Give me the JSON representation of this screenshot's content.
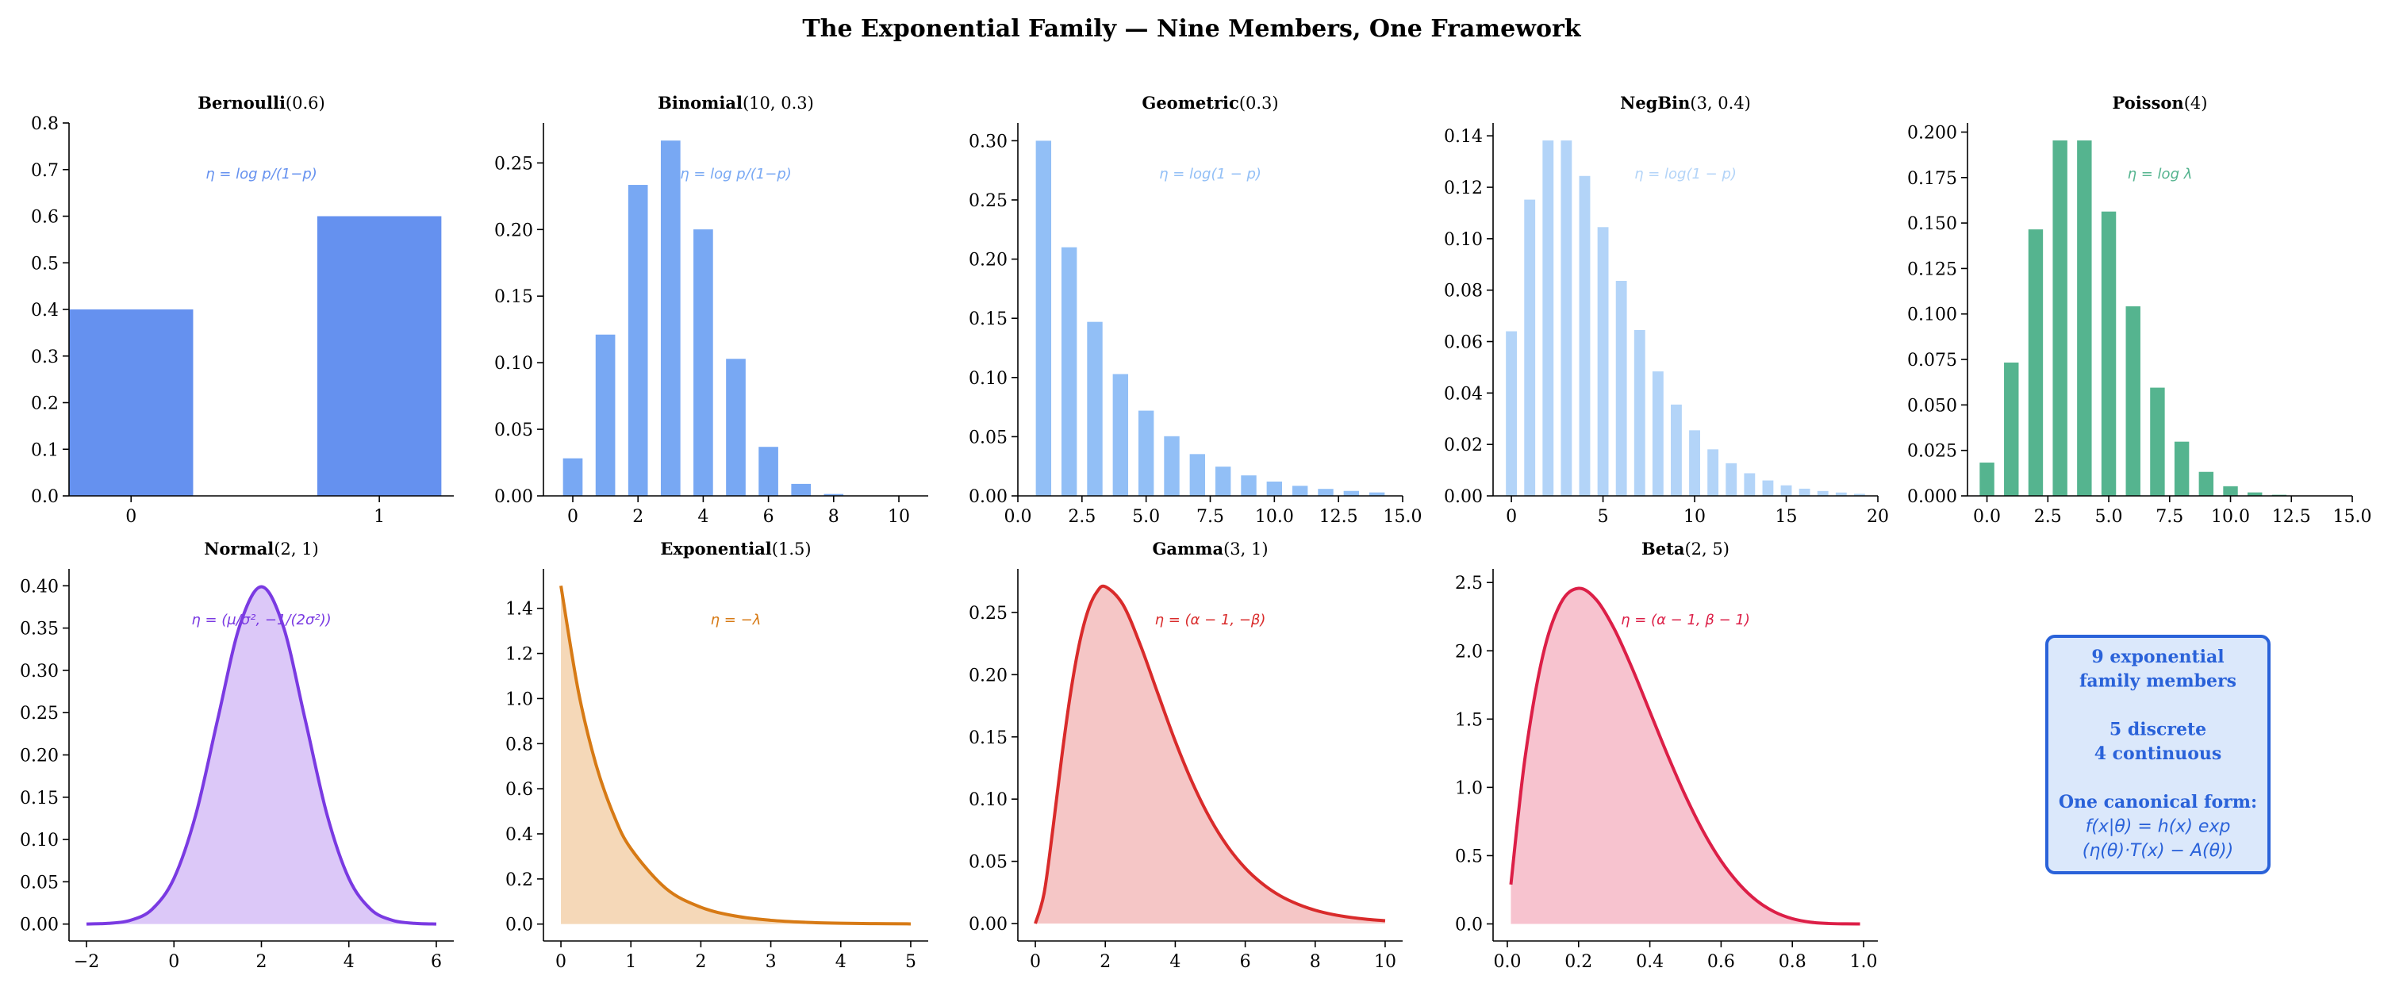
{
  "figure_title": "The Exponential Family — Nine Members, One Framework",
  "chart_data": [
    {
      "type": "bar",
      "title_name": "Bernoulli",
      "title_params": "(0.6)",
      "annotation": "η = log p/(1−p)",
      "color": "#6591ef",
      "x": [
        0,
        1
      ],
      "values": [
        0.4,
        0.6
      ],
      "xlim": [
        -0.25,
        1.3
      ],
      "ylim": [
        0,
        0.8
      ],
      "xticks": [
        0,
        1
      ],
      "xtick_labels": [
        "0",
        "1"
      ],
      "yticks": [
        0,
        0.1,
        0.2,
        0.3,
        0.4,
        0.5,
        0.6,
        0.7,
        0.8
      ],
      "ytick_labels": [
        "0.0",
        "0.1",
        "0.2",
        "0.3",
        "0.4",
        "0.5",
        "0.6",
        "0.7",
        "0.8"
      ]
    },
    {
      "type": "bar",
      "title_name": "Binomial",
      "title_params": "(10, 0.3)",
      "annotation": "η = log p/(1−p)",
      "color": "#78a8f3",
      "x": [
        0,
        1,
        2,
        3,
        4,
        5,
        6,
        7,
        8,
        9,
        10
      ],
      "values": [
        0.0282,
        0.1211,
        0.2335,
        0.2668,
        0.2001,
        0.1029,
        0.0368,
        0.009,
        0.0014,
        0.0001,
        0.0
      ],
      "xlim": [
        -0.9,
        10.9
      ],
      "ylim": [
        0,
        0.28
      ],
      "xticks": [
        0,
        2,
        4,
        6,
        8,
        10
      ],
      "xtick_labels": [
        "0",
        "2",
        "4",
        "6",
        "8",
        "10"
      ],
      "yticks": [
        0,
        0.05,
        0.1,
        0.15,
        0.2,
        0.25
      ],
      "ytick_labels": [
        "0.00",
        "0.05",
        "0.10",
        "0.15",
        "0.20",
        "0.25"
      ]
    },
    {
      "type": "bar",
      "title_name": "Geometric",
      "title_params": "(0.3)",
      "annotation": "η = log(1 − p)",
      "color": "#92bff6",
      "x": [
        1,
        2,
        3,
        4,
        5,
        6,
        7,
        8,
        9,
        10,
        11,
        12,
        13,
        14
      ],
      "values": [
        0.3,
        0.21,
        0.147,
        0.1029,
        0.072,
        0.0504,
        0.0353,
        0.0247,
        0.0173,
        0.0121,
        0.0085,
        0.0059,
        0.0042,
        0.0029
      ],
      "xlim": [
        0,
        15
      ],
      "ylim": [
        0,
        0.315
      ],
      "xticks": [
        0,
        2.5,
        5,
        7.5,
        10,
        12.5,
        15
      ],
      "xtick_labels": [
        "0.0",
        "2.5",
        "5.0",
        "7.5",
        "10.0",
        "12.5",
        "15.0"
      ],
      "yticks": [
        0,
        0.05,
        0.1,
        0.15,
        0.2,
        0.25,
        0.3
      ],
      "ytick_labels": [
        "0.00",
        "0.05",
        "0.10",
        "0.15",
        "0.20",
        "0.25",
        "0.30"
      ]
    },
    {
      "type": "bar",
      "title_name": "NegBin",
      "title_params": "(3, 0.4)",
      "annotation": "η = log(1 − p)",
      "color": "#b3d4f8",
      "x": [
        0,
        1,
        2,
        3,
        4,
        5,
        6,
        7,
        8,
        9,
        10,
        11,
        12,
        13,
        14,
        15,
        16,
        17,
        18,
        19
      ],
      "values": [
        0.064,
        0.1152,
        0.1382,
        0.1382,
        0.1244,
        0.1045,
        0.0836,
        0.0645,
        0.0484,
        0.0355,
        0.0255,
        0.0181,
        0.0127,
        0.0088,
        0.006,
        0.0041,
        0.0028,
        0.0019,
        0.0013,
        0.0008
      ],
      "xlim": [
        -1,
        20
      ],
      "ylim": [
        0,
        0.145
      ],
      "xticks": [
        0,
        5,
        10,
        15,
        20
      ],
      "xtick_labels": [
        "0",
        "5",
        "10",
        "15",
        "20"
      ],
      "yticks": [
        0,
        0.02,
        0.04,
        0.06,
        0.08,
        0.1,
        0.12,
        0.14
      ],
      "ytick_labels": [
        "0.00",
        "0.02",
        "0.04",
        "0.06",
        "0.08",
        "0.10",
        "0.12",
        "0.14"
      ]
    },
    {
      "type": "bar",
      "title_name": "Poisson",
      "title_params": "(4)",
      "annotation": "η = log λ",
      "color": "#55b48f",
      "x": [
        0,
        1,
        2,
        3,
        4,
        5,
        6,
        7,
        8,
        9,
        10,
        11,
        12,
        13,
        14
      ],
      "values": [
        0.0183,
        0.0733,
        0.1465,
        0.1954,
        0.1954,
        0.1563,
        0.1042,
        0.0595,
        0.0298,
        0.0132,
        0.0053,
        0.0019,
        0.0006,
        0.0002,
        0.0001
      ],
      "xlim": [
        -0.8,
        15
      ],
      "ylim": [
        0,
        0.205
      ],
      "xticks": [
        0,
        2.5,
        5,
        7.5,
        10,
        12.5,
        15
      ],
      "xtick_labels": [
        "0.0",
        "2.5",
        "5.0",
        "7.5",
        "10.0",
        "12.5",
        "15.0"
      ],
      "yticks": [
        0,
        0.025,
        0.05,
        0.075,
        0.1,
        0.125,
        0.15,
        0.175,
        0.2
      ],
      "ytick_labels": [
        "0.000",
        "0.025",
        "0.050",
        "0.075",
        "0.100",
        "0.125",
        "0.150",
        "0.175",
        "0.200"
      ]
    },
    {
      "type": "area",
      "title_name": "Normal",
      "title_params": "(2, 1)",
      "annotation": "η = (μ/σ², −1/(2σ²))",
      "color": "#7a3ae2",
      "fill": "#dcc8f8",
      "x": [
        -2,
        -1.5,
        -1,
        -0.5,
        0,
        0.5,
        1,
        1.5,
        2,
        2.5,
        3,
        3.5,
        4,
        4.5,
        5,
        5.5,
        6
      ],
      "values": [
        0.0001,
        0.0009,
        0.0044,
        0.0175,
        0.054,
        0.1295,
        0.242,
        0.3521,
        0.3989,
        0.3521,
        0.242,
        0.1295,
        0.054,
        0.0175,
        0.0044,
        0.0009,
        0.0001
      ],
      "xlim": [
        -2.4,
        6.4
      ],
      "ylim": [
        -0.02,
        0.42
      ],
      "xticks": [
        -2,
        0,
        2,
        4,
        6
      ],
      "xtick_labels": [
        "−2",
        "0",
        "2",
        "4",
        "6"
      ],
      "yticks": [
        0,
        0.05,
        0.1,
        0.15,
        0.2,
        0.25,
        0.3,
        0.35,
        0.4
      ],
      "ytick_labels": [
        "0.00",
        "0.05",
        "0.10",
        "0.15",
        "0.20",
        "0.25",
        "0.30",
        "0.35",
        "0.40"
      ]
    },
    {
      "type": "area",
      "title_name": "Exponential",
      "title_params": "(1.5)",
      "annotation": "η = −λ",
      "color": "#d77a15",
      "fill": "#f5d8b8",
      "x": [
        0,
        0.25,
        0.5,
        0.75,
        1,
        1.5,
        2,
        2.5,
        3,
        3.5,
        4,
        4.5,
        5
      ],
      "values": [
        1.5,
        1.0307,
        0.7085,
        0.4869,
        0.3347,
        0.1581,
        0.0747,
        0.0353,
        0.0167,
        0.0079,
        0.0037,
        0.0018,
        0.0008
      ],
      "xlim": [
        -0.25,
        5.25
      ],
      "ylim": [
        -0.075,
        1.575
      ],
      "xticks": [
        0,
        1,
        2,
        3,
        4,
        5
      ],
      "xtick_labels": [
        "0",
        "1",
        "2",
        "3",
        "4",
        "5"
      ],
      "yticks": [
        0,
        0.2,
        0.4,
        0.6,
        0.8,
        1.0,
        1.2,
        1.4
      ],
      "ytick_labels": [
        "0.0",
        "0.2",
        "0.4",
        "0.6",
        "0.8",
        "1.0",
        "1.2",
        "1.4"
      ]
    },
    {
      "type": "area",
      "title_name": "Gamma",
      "title_params": "(3, 1)",
      "annotation": "η = (α − 1, −β)",
      "color": "#d92b2b",
      "fill": "#f5c6c6",
      "x": [
        0,
        0.25,
        0.5,
        0.75,
        1,
        1.25,
        1.5,
        1.75,
        2,
        2.5,
        3,
        3.5,
        4,
        4.5,
        5,
        5.5,
        6,
        6.5,
        7,
        7.5,
        8,
        8.5,
        9,
        9.5,
        10
      ],
      "values": [
        0,
        0.0243,
        0.0758,
        0.1329,
        0.1839,
        0.2238,
        0.251,
        0.2661,
        0.2707,
        0.2565,
        0.224,
        0.185,
        0.1465,
        0.1125,
        0.0842,
        0.0618,
        0.0446,
        0.0318,
        0.0223,
        0.0156,
        0.0107,
        0.0073,
        0.005,
        0.0034,
        0.0023
      ],
      "xlim": [
        -0.5,
        10.5
      ],
      "ylim": [
        -0.014,
        0.285
      ],
      "xticks": [
        0,
        2,
        4,
        6,
        8,
        10
      ],
      "xtick_labels": [
        "0",
        "2",
        "4",
        "6",
        "8",
        "10"
      ],
      "yticks": [
        0,
        0.05,
        0.1,
        0.15,
        0.2,
        0.25
      ],
      "ytick_labels": [
        "0.00",
        "0.05",
        "0.10",
        "0.15",
        "0.20",
        "0.25"
      ]
    },
    {
      "type": "area",
      "title_name": "Beta",
      "title_params": "(2, 5)",
      "annotation": "η = (α − 1, β − 1)",
      "color": "#dc1f47",
      "fill": "#f7c3cf",
      "x": [
        0.01,
        0.05,
        0.1,
        0.15,
        0.2,
        0.25,
        0.3,
        0.35,
        0.4,
        0.45,
        0.5,
        0.55,
        0.6,
        0.65,
        0.7,
        0.75,
        0.8,
        0.85,
        0.9,
        0.95,
        0.99
      ],
      "values": [
        0.2882,
        1.2219,
        1.9683,
        2.3491,
        2.4576,
        2.373,
        2.1609,
        1.8744,
        1.5552,
        1.2354,
        0.9375,
        0.6766,
        0.4608,
        0.2941,
        0.1701,
        0.0879,
        0.0384,
        0.0132,
        0.0032,
        0.0004,
        0
      ],
      "xlim": [
        -0.04,
        1.04
      ],
      "ylim": [
        -0.125,
        2.6
      ],
      "xticks": [
        0,
        0.2,
        0.4,
        0.6,
        0.8,
        1.0
      ],
      "xtick_labels": [
        "0.0",
        "0.2",
        "0.4",
        "0.6",
        "0.8",
        "1.0"
      ],
      "yticks": [
        0,
        0.5,
        1.0,
        1.5,
        2.0,
        2.5
      ],
      "ytick_labels": [
        "0.0",
        "0.5",
        "1.0",
        "1.5",
        "2.0",
        "2.5"
      ]
    }
  ],
  "summary_box": {
    "lines": [
      "9 exponential",
      "family members",
      "",
      "5 discrete",
      "4 continuous",
      "",
      "One canonical form:",
      "f(x|θ) = h(x) exp",
      "(η(θ)·T(x) − A(θ))"
    ],
    "text_color": "#2a62d9",
    "border_color": "#2a62d9",
    "background": "#dbe8fb"
  }
}
